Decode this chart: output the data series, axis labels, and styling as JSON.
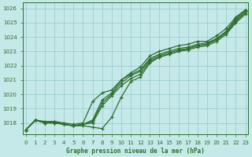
{
  "xlabel": "Graphe pression niveau de la mer (hPa)",
  "bg_color": "#c5e8e8",
  "grid_color": "#9ecece",
  "line_color": "#2d6e2d",
  "ylim": [
    1017.2,
    1026.4
  ],
  "xlim": [
    -0.3,
    23.3
  ],
  "yticks": [
    1018,
    1019,
    1020,
    1021,
    1022,
    1023,
    1024,
    1025,
    1026
  ],
  "xticks": [
    0,
    1,
    2,
    3,
    4,
    5,
    6,
    7,
    8,
    9,
    10,
    11,
    12,
    13,
    14,
    15,
    16,
    17,
    18,
    19,
    20,
    21,
    22,
    23
  ],
  "lines": [
    [
      1017.5,
      1018.2,
      1018.0,
      1018.1,
      1018.0,
      1017.9,
      1018.0,
      1019.5,
      1020.1,
      1020.3,
      1021.0,
      1021.4,
      1021.7,
      1022.5,
      1022.8,
      1023.0,
      1023.2,
      1023.3,
      1023.5,
      1023.6,
      1023.9,
      1024.4,
      1025.2,
      1025.8
    ],
    [
      1017.5,
      1018.2,
      1018.0,
      1018.0,
      1017.9,
      1017.8,
      1017.9,
      1018.0,
      1019.2,
      1019.9,
      1020.6,
      1021.1,
      1021.4,
      1022.3,
      1022.6,
      1022.8,
      1023.0,
      1023.1,
      1023.3,
      1023.4,
      1023.7,
      1024.2,
      1025.0,
      1025.6
    ],
    [
      1017.5,
      1018.2,
      1018.0,
      1018.0,
      1017.9,
      1017.8,
      1017.9,
      1018.1,
      1019.4,
      1020.0,
      1020.8,
      1021.3,
      1021.6,
      1022.4,
      1022.7,
      1022.9,
      1023.1,
      1023.2,
      1023.4,
      1023.5,
      1023.8,
      1024.3,
      1025.1,
      1025.7
    ],
    [
      1017.5,
      1018.2,
      1018.0,
      1018.0,
      1017.9,
      1017.8,
      1017.9,
      1018.2,
      1019.6,
      1020.1,
      1021.0,
      1021.5,
      1021.9,
      1022.7,
      1023.0,
      1023.2,
      1023.4,
      1023.5,
      1023.7,
      1023.7,
      1024.1,
      1024.6,
      1025.4,
      1025.9
    ]
  ],
  "line_lone": [
    1017.5,
    1018.2,
    1018.1,
    1018.1,
    1017.9,
    1017.8,
    1017.8,
    1017.7,
    1017.6,
    1018.4,
    1019.8,
    1020.9,
    1021.2,
    1022.2,
    1022.6,
    1022.8,
    1023.0,
    1023.2,
    1023.4,
    1023.5,
    1023.9,
    1024.4,
    1025.3,
    1025.9
  ]
}
